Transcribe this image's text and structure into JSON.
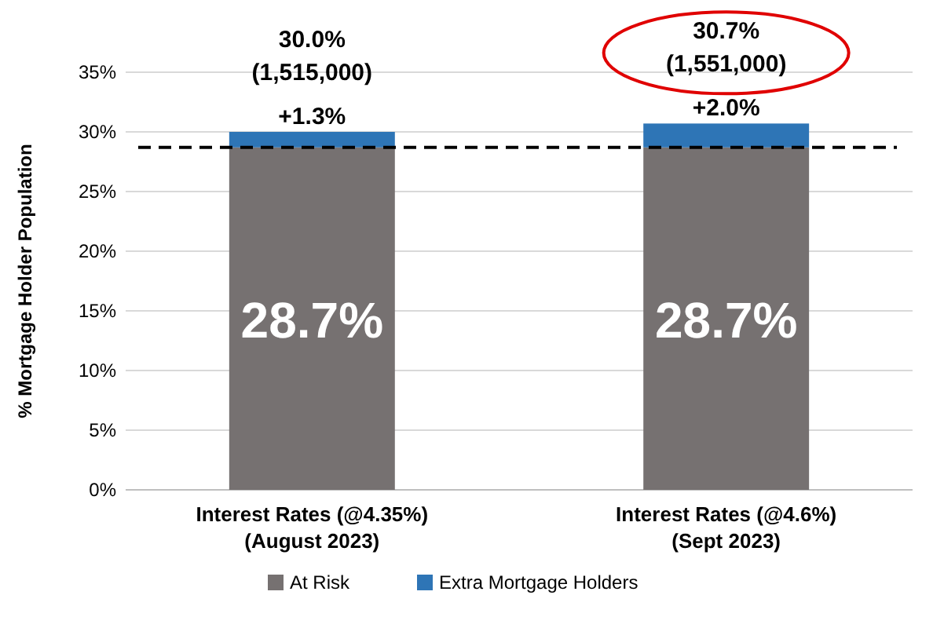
{
  "chart_data": {
    "type": "bar",
    "stacked": true,
    "ylabel": "% Mortgage Holder Population",
    "categories": [
      "Interest Rates (@4.35%)\n(August 2023)",
      "Interest Rates (@4.6%)\n(Sept 2023)"
    ],
    "series": [
      {
        "name": "At Risk",
        "color": "#767171",
        "values": [
          28.7,
          28.7
        ],
        "value_labels": [
          "28.7%",
          "28.7%"
        ]
      },
      {
        "name": "Extra Mortgage Holders",
        "color": "#2e75b6",
        "values": [
          1.3,
          2.0
        ],
        "value_labels": [
          "+1.3%",
          "+2.0%"
        ]
      }
    ],
    "totals": [
      "30.0%\n(1,515,000)",
      "30.7%\n(1,551,000)"
    ],
    "ylim": [
      0,
      35
    ],
    "yticks": [
      {
        "value": 0,
        "label": "0%"
      },
      {
        "value": 5,
        "label": "5%"
      },
      {
        "value": 10,
        "label": "10%"
      },
      {
        "value": 15,
        "label": "15%"
      },
      {
        "value": 20,
        "label": "20%"
      },
      {
        "value": 25,
        "label": "25%"
      },
      {
        "value": 30,
        "label": "30%"
      },
      {
        "value": 35,
        "label": "35%"
      }
    ],
    "ref_lines": [
      {
        "axis": "y",
        "value": 28.7,
        "color": "#000000",
        "line_style": "dashed"
      }
    ],
    "grid": "y",
    "legend": "bottom"
  }
}
